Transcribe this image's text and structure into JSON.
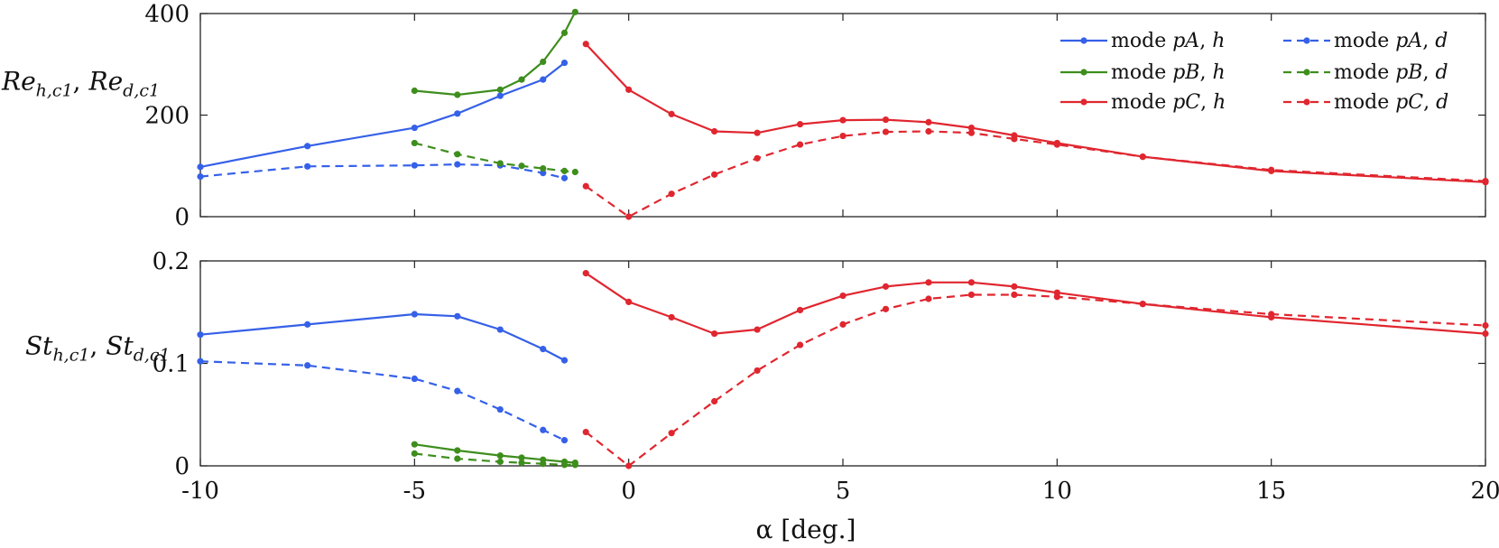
{
  "figure": {
    "xlabel": "α [deg.]",
    "x_tick_labels": [
      "-10",
      "-5",
      "0",
      "5",
      "10",
      "15",
      "20"
    ]
  },
  "chart_data": [
    {
      "type": "line",
      "ylabel_main": "Re",
      "ylabel_sub1": "h,c1",
      "ylabel_sep": ", ",
      "ylabel_sub2": "d,c1",
      "xlim": [
        -10,
        20
      ],
      "ylim": [
        0,
        400
      ],
      "y_ticks": [
        0,
        200,
        400
      ],
      "y_tick_labels": [
        "0",
        "200",
        "400"
      ],
      "legend": {
        "placement": "top-right",
        "entries": [
          {
            "prefix": "mode ",
            "mode": "pA",
            "sep": ", ",
            "var": "h"
          },
          {
            "prefix": "mode ",
            "mode": "pA",
            "sep": ", ",
            "var": "d"
          },
          {
            "prefix": "mode ",
            "mode": "pB",
            "sep": ", ",
            "var": "h"
          },
          {
            "prefix": "mode ",
            "mode": "pB",
            "sep": ", ",
            "var": "d"
          },
          {
            "prefix": "mode ",
            "mode": "pC",
            "sep": ", ",
            "var": "h"
          },
          {
            "prefix": "mode ",
            "mode": "pC",
            "sep": ", ",
            "var": "d"
          }
        ]
      },
      "series": [
        {
          "name": "mode pA, h",
          "color": "#3560e8",
          "dash": false,
          "x": [
            -10,
            -7.5,
            -5,
            -4,
            -3,
            -2,
            -1.5
          ],
          "y": [
            98,
            139,
            175,
            203,
            238,
            270,
            303
          ]
        },
        {
          "name": "mode pA, d",
          "color": "#3560e8",
          "dash": true,
          "x": [
            -10,
            -7.5,
            -5,
            -4,
            -3,
            -2,
            -1.5
          ],
          "y": [
            79,
            99,
            101,
            103,
            101,
            86,
            76
          ]
        },
        {
          "name": "mode pB, h",
          "color": "#3e8e1d",
          "dash": false,
          "x": [
            -5,
            -4,
            -3,
            -2.5,
            -2,
            -1.5,
            -1.25
          ],
          "y": [
            248,
            240,
            250,
            270,
            305,
            362,
            403
          ]
        },
        {
          "name": "mode pB, d",
          "color": "#3e8e1d",
          "dash": true,
          "x": [
            -5,
            -4,
            -3,
            -2.5,
            -2,
            -1.5,
            -1.25
          ],
          "y": [
            145,
            123,
            105,
            100,
            95,
            90,
            88
          ]
        },
        {
          "name": "mode pC, h",
          "color": "#e0262f",
          "dash": false,
          "x": [
            -1,
            0,
            1,
            2,
            3,
            4,
            5,
            6,
            7,
            8,
            9,
            10,
            12,
            15,
            20
          ],
          "y": [
            340,
            250,
            202,
            168,
            165,
            182,
            190,
            191,
            186,
            175,
            160,
            145,
            118,
            90,
            68
          ]
        },
        {
          "name": "mode pC, d",
          "color": "#e0262f",
          "dash": true,
          "x": [
            -1,
            0,
            1,
            2,
            3,
            4,
            5,
            6,
            7,
            8,
            9,
            10,
            12,
            15,
            20
          ],
          "y": [
            60,
            0,
            45,
            83,
            115,
            142,
            159,
            167,
            168,
            165,
            153,
            142,
            118,
            92,
            70
          ]
        }
      ]
    },
    {
      "type": "line",
      "ylabel_main": "St",
      "ylabel_sub1": "h,c1",
      "ylabel_sep": ", ",
      "ylabel_sub2": "d,c1",
      "xlim": [
        -10,
        20
      ],
      "ylim": [
        0,
        0.2
      ],
      "y_ticks": [
        0,
        0.1,
        0.2
      ],
      "y_tick_labels": [
        "0",
        "0.1",
        "0.2"
      ],
      "series": [
        {
          "name": "mode pA, h",
          "color": "#3560e8",
          "dash": false,
          "x": [
            -10,
            -7.5,
            -5,
            -4,
            -3,
            -2,
            -1.5
          ],
          "y": [
            0.128,
            0.138,
            0.148,
            0.146,
            0.133,
            0.114,
            0.103
          ]
        },
        {
          "name": "mode pA, d",
          "color": "#3560e8",
          "dash": true,
          "x": [
            -10,
            -7.5,
            -5,
            -4,
            -3,
            -2,
            -1.5
          ],
          "y": [
            0.102,
            0.098,
            0.085,
            0.073,
            0.055,
            0.035,
            0.025
          ]
        },
        {
          "name": "mode pB, h",
          "color": "#3e8e1d",
          "dash": false,
          "x": [
            -5,
            -4,
            -3,
            -2.5,
            -2,
            -1.5,
            -1.25
          ],
          "y": [
            0.021,
            0.015,
            0.01,
            0.008,
            0.006,
            0.004,
            0.003
          ]
        },
        {
          "name": "mode pB, d",
          "color": "#3e8e1d",
          "dash": true,
          "x": [
            -5,
            -4,
            -3,
            -2.5,
            -2,
            -1.5,
            -1.25
          ],
          "y": [
            0.012,
            0.007,
            0.004,
            0.003,
            0.002,
            0.001,
            0.001
          ]
        },
        {
          "name": "mode pC, h",
          "color": "#e0262f",
          "dash": false,
          "x": [
            -1,
            0,
            1,
            2,
            3,
            4,
            5,
            6,
            7,
            8,
            9,
            10,
            12,
            15,
            20
          ],
          "y": [
            0.188,
            0.16,
            0.145,
            0.129,
            0.133,
            0.152,
            0.166,
            0.175,
            0.179,
            0.179,
            0.175,
            0.169,
            0.158,
            0.145,
            0.129
          ]
        },
        {
          "name": "mode pC, d",
          "color": "#e0262f",
          "dash": true,
          "x": [
            -1,
            0,
            1,
            2,
            3,
            4,
            5,
            6,
            7,
            8,
            9,
            10,
            12,
            15,
            20
          ],
          "y": [
            0.033,
            0.0,
            0.032,
            0.063,
            0.093,
            0.118,
            0.138,
            0.153,
            0.163,
            0.167,
            0.167,
            0.165,
            0.158,
            0.148,
            0.137
          ]
        }
      ]
    }
  ]
}
